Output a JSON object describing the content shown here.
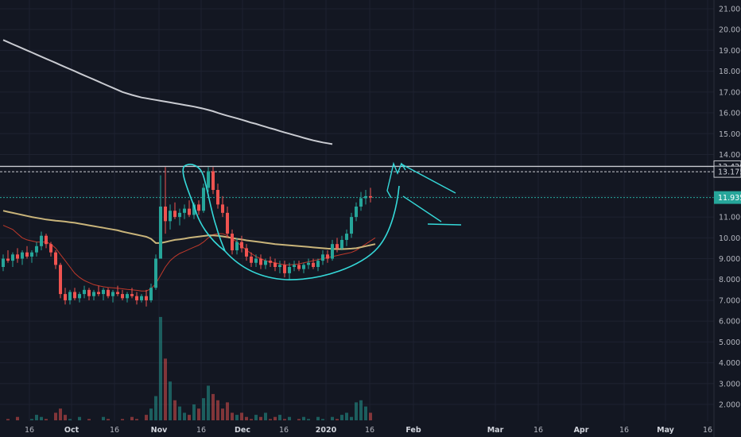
{
  "chart_data": {
    "type": "candlestick",
    "title": "",
    "xlabel": "",
    "ylabel": "",
    "ylim": [
      1.2,
      21.3
    ],
    "grid": true,
    "y_ticks": [
      "21.000",
      "20.000",
      "19.000",
      "18.000",
      "17.000",
      "16.000",
      "15.000",
      "14.000",
      "12.000",
      "11.000",
      "10.000",
      "9.000",
      "8.000",
      "7.000",
      "6.000",
      "5.000",
      "4.000",
      "3.000",
      "2.000"
    ],
    "x_ticks": [
      "16",
      "Oct",
      "16",
      "Nov",
      "16",
      "Dec",
      "16",
      "2020",
      "16",
      "Feb",
      "Mar",
      "16",
      "Apr",
      "16",
      "May",
      "16"
    ],
    "price_labels": [
      {
        "text": "13.429",
        "value": 13.429,
        "style": "outline"
      },
      {
        "text": "13.175",
        "value": 13.175,
        "style": "outline"
      },
      {
        "text": "11.935",
        "value": 11.935,
        "style": "filled"
      }
    ],
    "horizontal_lines": [
      13.429,
      13.175,
      11.935
    ],
    "colors": {
      "background": "#131722",
      "up": "#26a69a",
      "down": "#ef5350",
      "ma_long": "#c9cbd1",
      "ma_mid": "#c9b47a",
      "ma_short": "#c0392b",
      "drawing": "#35d9d9",
      "last_price": "#26a69a"
    },
    "candles": [
      {
        "o": 8.6,
        "h": 9.2,
        "l": 8.4,
        "c": 9.0
      },
      {
        "o": 9.0,
        "h": 9.4,
        "l": 8.8,
        "c": 8.9
      },
      {
        "o": 8.9,
        "h": 9.3,
        "l": 8.6,
        "c": 9.2
      },
      {
        "o": 9.2,
        "h": 9.5,
        "l": 8.8,
        "c": 9.0
      },
      {
        "o": 9.0,
        "h": 9.4,
        "l": 8.7,
        "c": 9.3
      },
      {
        "o": 9.3,
        "h": 9.6,
        "l": 9.0,
        "c": 9.1
      },
      {
        "o": 9.1,
        "h": 9.4,
        "l": 8.8,
        "c": 9.3
      },
      {
        "o": 9.3,
        "h": 9.8,
        "l": 9.1,
        "c": 9.6
      },
      {
        "o": 9.6,
        "h": 10.3,
        "l": 9.4,
        "c": 10.1
      },
      {
        "o": 10.1,
        "h": 10.2,
        "l": 9.5,
        "c": 9.7
      },
      {
        "o": 9.7,
        "h": 9.8,
        "l": 9.1,
        "c": 9.3
      },
      {
        "o": 9.3,
        "h": 9.4,
        "l": 8.5,
        "c": 8.7
      },
      {
        "o": 8.7,
        "h": 8.8,
        "l": 7.1,
        "c": 7.3
      },
      {
        "o": 7.3,
        "h": 7.6,
        "l": 6.8,
        "c": 7.0
      },
      {
        "o": 7.0,
        "h": 7.5,
        "l": 6.8,
        "c": 7.4
      },
      {
        "o": 7.4,
        "h": 7.6,
        "l": 7.0,
        "c": 7.1
      },
      {
        "o": 7.1,
        "h": 7.4,
        "l": 6.9,
        "c": 7.3
      },
      {
        "o": 7.3,
        "h": 7.7,
        "l": 7.1,
        "c": 7.5
      },
      {
        "o": 7.5,
        "h": 7.6,
        "l": 7.0,
        "c": 7.2
      },
      {
        "o": 7.2,
        "h": 7.5,
        "l": 7.0,
        "c": 7.4
      },
      {
        "o": 7.4,
        "h": 7.7,
        "l": 7.2,
        "c": 7.3
      },
      {
        "o": 7.3,
        "h": 7.6,
        "l": 7.0,
        "c": 7.5
      },
      {
        "o": 7.5,
        "h": 7.6,
        "l": 7.1,
        "c": 7.2
      },
      {
        "o": 7.2,
        "h": 7.5,
        "l": 6.9,
        "c": 7.4
      },
      {
        "o": 7.4,
        "h": 7.7,
        "l": 7.2,
        "c": 7.3
      },
      {
        "o": 7.3,
        "h": 7.5,
        "l": 7.0,
        "c": 7.1
      },
      {
        "o": 7.1,
        "h": 7.4,
        "l": 6.9,
        "c": 7.3
      },
      {
        "o": 7.3,
        "h": 7.6,
        "l": 7.1,
        "c": 7.2
      },
      {
        "o": 7.2,
        "h": 7.4,
        "l": 6.8,
        "c": 7.0
      },
      {
        "o": 7.0,
        "h": 7.3,
        "l": 6.9,
        "c": 7.2
      },
      {
        "o": 7.2,
        "h": 7.5,
        "l": 6.7,
        "c": 7.0
      },
      {
        "o": 7.0,
        "h": 7.8,
        "l": 6.9,
        "c": 7.6
      },
      {
        "o": 7.6,
        "h": 9.2,
        "l": 7.5,
        "c": 9.0
      },
      {
        "o": 9.0,
        "h": 13.0,
        "l": 9.0,
        "c": 11.5
      },
      {
        "o": 11.5,
        "h": 13.4,
        "l": 10.2,
        "c": 10.8
      },
      {
        "o": 10.8,
        "h": 11.6,
        "l": 10.4,
        "c": 11.3
      },
      {
        "o": 11.3,
        "h": 11.7,
        "l": 10.9,
        "c": 11.0
      },
      {
        "o": 11.0,
        "h": 11.4,
        "l": 10.6,
        "c": 11.2
      },
      {
        "o": 11.2,
        "h": 11.6,
        "l": 10.9,
        "c": 11.4
      },
      {
        "o": 11.4,
        "h": 11.8,
        "l": 11.0,
        "c": 11.1
      },
      {
        "o": 11.1,
        "h": 11.7,
        "l": 10.9,
        "c": 11.6
      },
      {
        "o": 11.6,
        "h": 11.8,
        "l": 11.1,
        "c": 11.3
      },
      {
        "o": 11.3,
        "h": 12.6,
        "l": 11.2,
        "c": 12.4
      },
      {
        "o": 12.4,
        "h": 13.4,
        "l": 12.2,
        "c": 13.2
      },
      {
        "o": 13.2,
        "h": 13.4,
        "l": 12.1,
        "c": 12.3
      },
      {
        "o": 12.3,
        "h": 12.6,
        "l": 11.4,
        "c": 11.6
      },
      {
        "o": 11.6,
        "h": 12.0,
        "l": 11.0,
        "c": 11.2
      },
      {
        "o": 11.2,
        "h": 11.5,
        "l": 10.0,
        "c": 10.2
      },
      {
        "o": 10.2,
        "h": 10.4,
        "l": 9.2,
        "c": 9.4
      },
      {
        "o": 9.4,
        "h": 10.0,
        "l": 9.2,
        "c": 9.8
      },
      {
        "o": 9.8,
        "h": 10.1,
        "l": 9.3,
        "c": 9.5
      },
      {
        "o": 9.5,
        "h": 9.7,
        "l": 8.9,
        "c": 9.1
      },
      {
        "o": 9.1,
        "h": 9.3,
        "l": 8.6,
        "c": 8.8
      },
      {
        "o": 8.8,
        "h": 9.2,
        "l": 8.6,
        "c": 9.0
      },
      {
        "o": 9.0,
        "h": 9.2,
        "l": 8.5,
        "c": 8.7
      },
      {
        "o": 8.7,
        "h": 9.0,
        "l": 8.5,
        "c": 8.9
      },
      {
        "o": 8.9,
        "h": 9.1,
        "l": 8.6,
        "c": 8.8
      },
      {
        "o": 8.8,
        "h": 9.0,
        "l": 8.4,
        "c": 8.6
      },
      {
        "o": 8.6,
        "h": 8.9,
        "l": 8.3,
        "c": 8.7
      },
      {
        "o": 8.7,
        "h": 8.9,
        "l": 8.1,
        "c": 8.3
      },
      {
        "o": 8.3,
        "h": 8.8,
        "l": 8.0,
        "c": 8.6
      },
      {
        "o": 8.6,
        "h": 8.9,
        "l": 8.4,
        "c": 8.7
      },
      {
        "o": 8.7,
        "h": 8.9,
        "l": 8.4,
        "c": 8.5
      },
      {
        "o": 8.5,
        "h": 8.8,
        "l": 8.3,
        "c": 8.7
      },
      {
        "o": 8.7,
        "h": 9.0,
        "l": 8.5,
        "c": 8.8
      },
      {
        "o": 8.8,
        "h": 9.0,
        "l": 8.5,
        "c": 8.6
      },
      {
        "o": 8.6,
        "h": 9.0,
        "l": 8.4,
        "c": 8.9
      },
      {
        "o": 8.9,
        "h": 9.4,
        "l": 8.7,
        "c": 9.2
      },
      {
        "o": 9.2,
        "h": 9.4,
        "l": 8.8,
        "c": 9.0
      },
      {
        "o": 9.0,
        "h": 9.9,
        "l": 8.9,
        "c": 9.7
      },
      {
        "o": 9.7,
        "h": 10.0,
        "l": 9.3,
        "c": 9.5
      },
      {
        "o": 9.5,
        "h": 10.1,
        "l": 9.4,
        "c": 9.9
      },
      {
        "o": 9.9,
        "h": 10.4,
        "l": 9.6,
        "c": 10.2
      },
      {
        "o": 10.2,
        "h": 11.2,
        "l": 10.0,
        "c": 11.0
      },
      {
        "o": 11.0,
        "h": 11.7,
        "l": 10.8,
        "c": 11.5
      },
      {
        "o": 11.5,
        "h": 12.2,
        "l": 11.3,
        "c": 11.9
      },
      {
        "o": 11.9,
        "h": 12.3,
        "l": 11.6,
        "c": 12.0
      },
      {
        "o": 12.0,
        "h": 12.4,
        "l": 11.7,
        "c": 11.935
      }
    ],
    "volume": [
      1.2,
      1.3,
      1.1,
      1.4,
      1.2,
      1.1,
      1.3,
      1.5,
      1.4,
      1.3,
      1.2,
      1.6,
      1.8,
      1.5,
      1.3,
      1.2,
      1.4,
      1.2,
      1.3,
      1.1,
      1.2,
      1.4,
      1.3,
      1.2,
      1.1,
      1.3,
      1.2,
      1.4,
      1.3,
      1.2,
      1.5,
      1.8,
      2.4,
      6.2,
      4.2,
      3.1,
      2.2,
      1.9,
      1.6,
      1.5,
      2.0,
      1.8,
      2.3,
      2.9,
      2.5,
      2.2,
      1.8,
      2.1,
      1.6,
      1.5,
      1.6,
      1.4,
      1.3,
      1.5,
      1.4,
      1.6,
      1.3,
      1.4,
      1.5,
      1.3,
      1.4,
      1.2,
      1.3,
      1.4,
      1.3,
      1.2,
      1.4,
      1.3,
      1.2,
      1.4,
      1.3,
      1.5,
      1.6,
      1.4,
      2.1,
      2.2,
      1.9,
      1.6,
      1.5
    ],
    "ma_long": [
      19.5,
      19.4,
      19.3,
      19.2,
      19.1,
      19.0,
      18.9,
      18.8,
      18.7,
      18.6,
      18.5,
      18.4,
      18.3,
      18.2,
      18.1,
      18.0,
      17.9,
      17.8,
      17.7,
      17.6,
      17.5,
      17.4,
      17.3,
      17.2,
      17.1,
      17.0,
      16.93,
      16.86,
      16.8,
      16.74,
      16.7,
      16.66,
      16.62,
      16.58,
      16.54,
      16.5,
      16.46,
      16.42,
      16.38,
      16.34,
      16.3,
      16.25,
      16.2,
      16.14,
      16.08,
      16.0,
      15.93,
      15.86,
      15.8,
      15.74,
      15.67,
      15.6,
      15.53,
      15.47,
      15.4,
      15.33,
      15.26,
      15.2,
      15.13,
      15.06,
      15.0,
      14.93,
      14.87,
      14.8,
      14.74,
      14.68,
      14.63,
      14.58,
      14.54,
      14.5
    ],
    "ma_mid": [
      11.3,
      11.25,
      11.2,
      11.15,
      11.1,
      11.05,
      11.0,
      10.96,
      10.92,
      10.88,
      10.85,
      10.82,
      10.8,
      10.78,
      10.75,
      10.72,
      10.68,
      10.64,
      10.6,
      10.56,
      10.52,
      10.48,
      10.44,
      10.4,
      10.36,
      10.3,
      10.25,
      10.2,
      10.15,
      10.1,
      10.05,
      9.95,
      9.75,
      9.75,
      9.8,
      9.85,
      9.9,
      9.93,
      9.96,
      10.0,
      10.03,
      10.06,
      10.09,
      10.12,
      10.12,
      10.1,
      10.07,
      10.03,
      9.99,
      9.95,
      9.92,
      9.88,
      9.85,
      9.82,
      9.79,
      9.76,
      9.73,
      9.7,
      9.68,
      9.66,
      9.64,
      9.62,
      9.6,
      9.58,
      9.56,
      9.54,
      9.52,
      9.5,
      9.48,
      9.47,
      9.46,
      9.46,
      9.47,
      9.48,
      9.5,
      9.55,
      9.6,
      9.65,
      9.7
    ],
    "ma_short": [
      10.6,
      10.5,
      10.4,
      10.2,
      10.0,
      9.9,
      9.85,
      9.8,
      9.8,
      9.8,
      9.7,
      9.5,
      9.2,
      8.9,
      8.6,
      8.3,
      8.1,
      7.95,
      7.85,
      7.75,
      7.7,
      7.65,
      7.62,
      7.6,
      7.58,
      7.55,
      7.52,
      7.5,
      7.48,
      7.45,
      7.45,
      7.55,
      7.8,
      8.2,
      8.6,
      8.9,
      9.1,
      9.25,
      9.35,
      9.45,
      9.55,
      9.65,
      9.8,
      10.0,
      10.15,
      10.2,
      10.2,
      10.1,
      9.95,
      9.8,
      9.6,
      9.4,
      9.25,
      9.1,
      9.0,
      8.9,
      8.85,
      8.8,
      8.75,
      8.7,
      8.7,
      8.72,
      8.75,
      8.8,
      8.85,
      8.9,
      8.95,
      9.0,
      9.05,
      9.1,
      9.15,
      9.2,
      9.25,
      9.3,
      9.4,
      9.55,
      9.7,
      9.85,
      10.0
    ]
  }
}
